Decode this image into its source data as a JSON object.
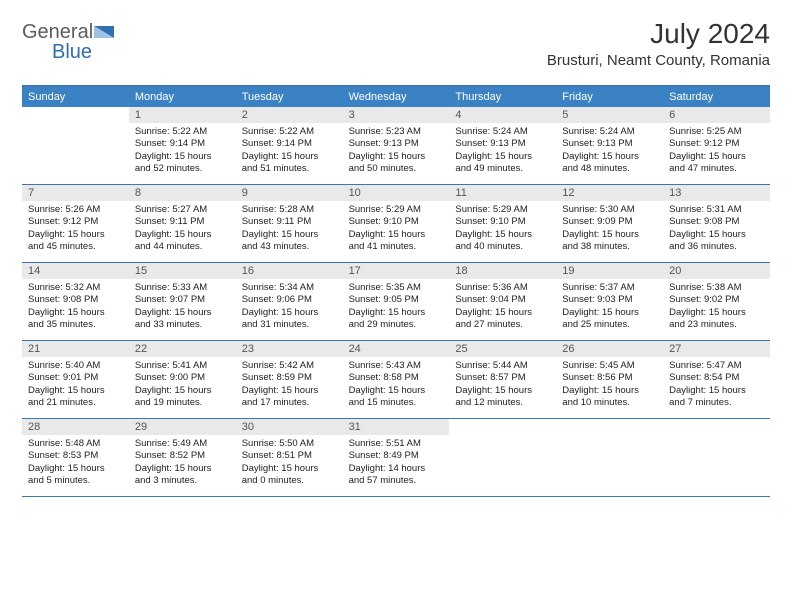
{
  "logo": {
    "text1": "General",
    "text2": "Blue",
    "color_dark": "#5c5c5c",
    "color_blue": "#2f6fb0"
  },
  "title": "July 2024",
  "location": "Brusturi, Neamt County, Romania",
  "header_bg": "#3b82c4",
  "header_text": "#ffffff",
  "daynum_bg": "#e9e9e9",
  "rule_color": "#3b77b5",
  "days_of_week": [
    "Sunday",
    "Monday",
    "Tuesday",
    "Wednesday",
    "Thursday",
    "Friday",
    "Saturday"
  ],
  "first_weekday_offset": 1,
  "cells": [
    {
      "n": 1,
      "sr": "5:22 AM",
      "ss": "9:14 PM",
      "dl": "15 hours and 52 minutes."
    },
    {
      "n": 2,
      "sr": "5:22 AM",
      "ss": "9:14 PM",
      "dl": "15 hours and 51 minutes."
    },
    {
      "n": 3,
      "sr": "5:23 AM",
      "ss": "9:13 PM",
      "dl": "15 hours and 50 minutes."
    },
    {
      "n": 4,
      "sr": "5:24 AM",
      "ss": "9:13 PM",
      "dl": "15 hours and 49 minutes."
    },
    {
      "n": 5,
      "sr": "5:24 AM",
      "ss": "9:13 PM",
      "dl": "15 hours and 48 minutes."
    },
    {
      "n": 6,
      "sr": "5:25 AM",
      "ss": "9:12 PM",
      "dl": "15 hours and 47 minutes."
    },
    {
      "n": 7,
      "sr": "5:26 AM",
      "ss": "9:12 PM",
      "dl": "15 hours and 45 minutes."
    },
    {
      "n": 8,
      "sr": "5:27 AM",
      "ss": "9:11 PM",
      "dl": "15 hours and 44 minutes."
    },
    {
      "n": 9,
      "sr": "5:28 AM",
      "ss": "9:11 PM",
      "dl": "15 hours and 43 minutes."
    },
    {
      "n": 10,
      "sr": "5:29 AM",
      "ss": "9:10 PM",
      "dl": "15 hours and 41 minutes."
    },
    {
      "n": 11,
      "sr": "5:29 AM",
      "ss": "9:10 PM",
      "dl": "15 hours and 40 minutes."
    },
    {
      "n": 12,
      "sr": "5:30 AM",
      "ss": "9:09 PM",
      "dl": "15 hours and 38 minutes."
    },
    {
      "n": 13,
      "sr": "5:31 AM",
      "ss": "9:08 PM",
      "dl": "15 hours and 36 minutes."
    },
    {
      "n": 14,
      "sr": "5:32 AM",
      "ss": "9:08 PM",
      "dl": "15 hours and 35 minutes."
    },
    {
      "n": 15,
      "sr": "5:33 AM",
      "ss": "9:07 PM",
      "dl": "15 hours and 33 minutes."
    },
    {
      "n": 16,
      "sr": "5:34 AM",
      "ss": "9:06 PM",
      "dl": "15 hours and 31 minutes."
    },
    {
      "n": 17,
      "sr": "5:35 AM",
      "ss": "9:05 PM",
      "dl": "15 hours and 29 minutes."
    },
    {
      "n": 18,
      "sr": "5:36 AM",
      "ss": "9:04 PM",
      "dl": "15 hours and 27 minutes."
    },
    {
      "n": 19,
      "sr": "5:37 AM",
      "ss": "9:03 PM",
      "dl": "15 hours and 25 minutes."
    },
    {
      "n": 20,
      "sr": "5:38 AM",
      "ss": "9:02 PM",
      "dl": "15 hours and 23 minutes."
    },
    {
      "n": 21,
      "sr": "5:40 AM",
      "ss": "9:01 PM",
      "dl": "15 hours and 21 minutes."
    },
    {
      "n": 22,
      "sr": "5:41 AM",
      "ss": "9:00 PM",
      "dl": "15 hours and 19 minutes."
    },
    {
      "n": 23,
      "sr": "5:42 AM",
      "ss": "8:59 PM",
      "dl": "15 hours and 17 minutes."
    },
    {
      "n": 24,
      "sr": "5:43 AM",
      "ss": "8:58 PM",
      "dl": "15 hours and 15 minutes."
    },
    {
      "n": 25,
      "sr": "5:44 AM",
      "ss": "8:57 PM",
      "dl": "15 hours and 12 minutes."
    },
    {
      "n": 26,
      "sr": "5:45 AM",
      "ss": "8:56 PM",
      "dl": "15 hours and 10 minutes."
    },
    {
      "n": 27,
      "sr": "5:47 AM",
      "ss": "8:54 PM",
      "dl": "15 hours and 7 minutes."
    },
    {
      "n": 28,
      "sr": "5:48 AM",
      "ss": "8:53 PM",
      "dl": "15 hours and 5 minutes."
    },
    {
      "n": 29,
      "sr": "5:49 AM",
      "ss": "8:52 PM",
      "dl": "15 hours and 3 minutes."
    },
    {
      "n": 30,
      "sr": "5:50 AM",
      "ss": "8:51 PM",
      "dl": "15 hours and 0 minutes."
    },
    {
      "n": 31,
      "sr": "5:51 AM",
      "ss": "8:49 PM",
      "dl": "14 hours and 57 minutes."
    }
  ],
  "labels": {
    "sunrise": "Sunrise:",
    "sunset": "Sunset:",
    "daylight": "Daylight:"
  }
}
